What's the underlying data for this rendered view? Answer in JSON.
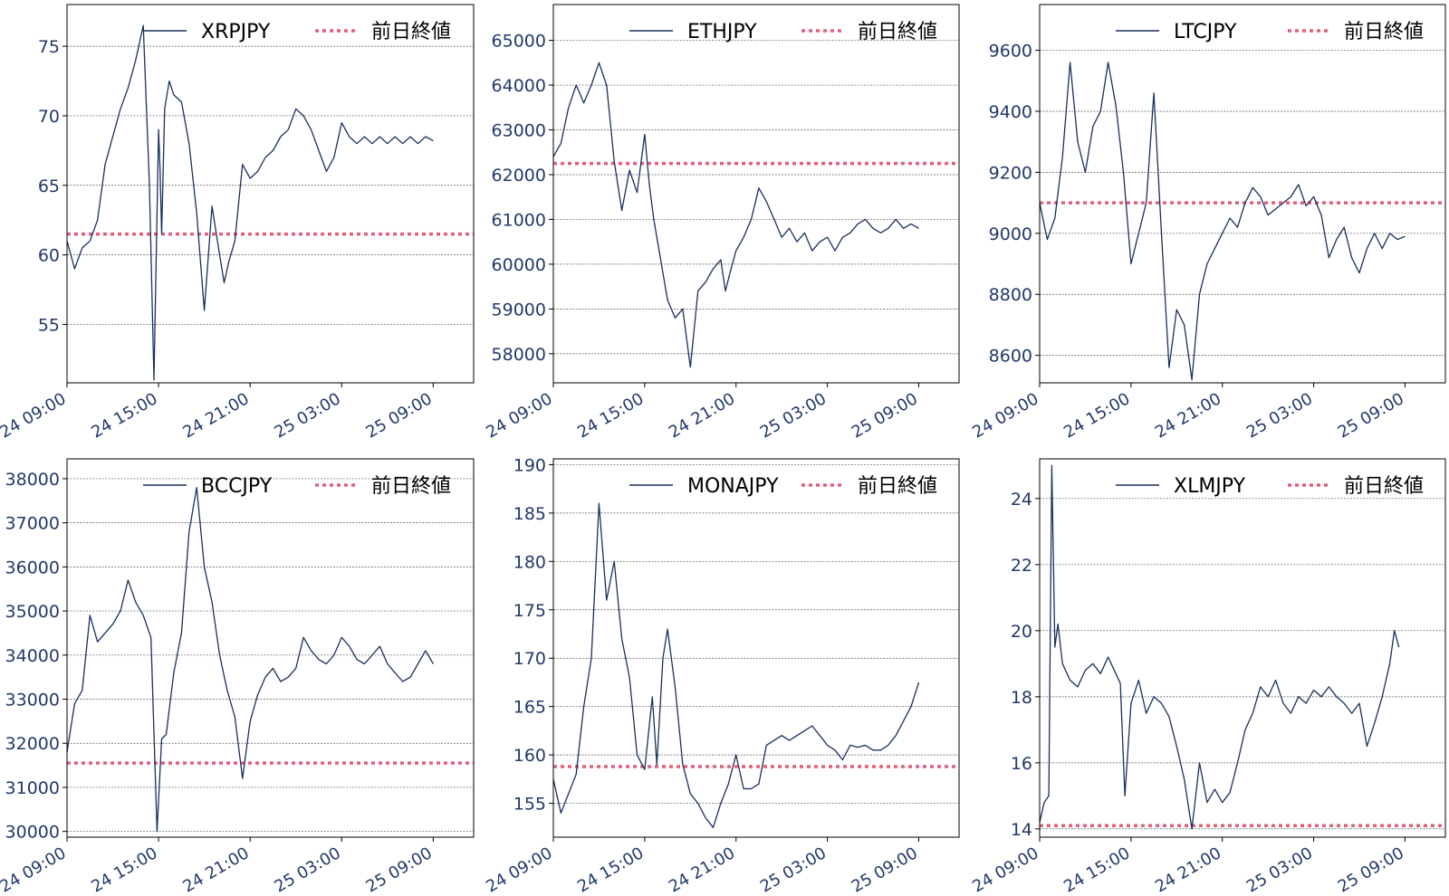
{
  "colors": {
    "series": "#1a2f5c",
    "prev_close": "#e0607e",
    "grid": "#555555",
    "frame": "#000000",
    "tick_text": "#23396a"
  },
  "legend": {
    "prev_close_label": "前日終値"
  },
  "xticks": [
    "24 09:00",
    "24 15:00",
    "24 21:00",
    "25 03:00",
    "25 09:00"
  ],
  "chart_data": [
    {
      "type": "line",
      "series_name": "XRPJPY",
      "y_ticks": [
        55,
        60,
        65,
        70,
        75
      ],
      "ylim": [
        50.8,
        78
      ],
      "prev_close": 61.5,
      "x_hours": [
        0,
        0.5,
        1.0,
        1.5,
        2.0,
        2.5,
        3.0,
        3.5,
        4.0,
        4.5,
        5.0,
        5.4,
        5.7,
        6.0,
        6.1,
        6.2,
        6.4,
        6.7,
        7.0,
        7.5,
        8.0,
        8.5,
        9.0,
        9.5,
        10.0,
        10.3,
        10.6,
        11.0,
        11.5,
        12.0,
        12.5,
        13.0,
        13.5,
        14.0,
        14.5,
        15.0,
        15.5,
        16.0,
        16.5,
        17.0,
        17.5,
        18.0,
        18.5,
        19.0,
        19.5,
        20.0,
        20.5,
        21.0,
        21.5,
        22.0,
        22.5,
        23.0,
        23.5,
        24.0
      ],
      "values": [
        61.0,
        59.0,
        60.5,
        61.0,
        62.5,
        66.5,
        68.5,
        70.5,
        72.0,
        74.0,
        76.5,
        65.0,
        51.0,
        69.0,
        66.0,
        61.5,
        70.5,
        72.5,
        71.5,
        71.0,
        68.0,
        63.0,
        56.0,
        63.5,
        60.0,
        58.0,
        59.5,
        61.0,
        66.5,
        65.5,
        66.0,
        67.0,
        67.5,
        68.5,
        69.0,
        70.5,
        70.0,
        69.0,
        67.5,
        66.0,
        67.0,
        69.5,
        68.5,
        68.0,
        68.5,
        68.0,
        68.5,
        68.0,
        68.5,
        68.0,
        68.5,
        68.0,
        68.5,
        68.2
      ]
    },
    {
      "type": "line",
      "series_name": "ETHJPY",
      "y_ticks": [
        58000,
        59000,
        60000,
        61000,
        62000,
        63000,
        64000,
        65000
      ],
      "ylim": [
        57350,
        65800
      ],
      "prev_close": 62250,
      "x_hours": [
        0,
        0.5,
        1.0,
        1.5,
        2.0,
        2.5,
        3.0,
        3.5,
        4.0,
        4.5,
        5.0,
        5.5,
        6.0,
        6.3,
        6.6,
        7.0,
        7.5,
        8.0,
        8.5,
        9.0,
        9.5,
        10.0,
        10.5,
        11.0,
        11.3,
        11.6,
        12.0,
        12.5,
        13.0,
        13.5,
        14.0,
        14.5,
        15.0,
        15.5,
        16.0,
        16.5,
        17.0,
        17.5,
        18.0,
        18.5,
        19.0,
        19.5,
        20.0,
        20.5,
        21.0,
        21.5,
        22.0,
        22.5,
        23.0,
        23.5,
        24.0
      ],
      "values": [
        62400,
        62700,
        63500,
        64000,
        63600,
        64000,
        64500,
        64000,
        62300,
        61200,
        62100,
        61600,
        62900,
        61800,
        61000,
        60200,
        59200,
        58800,
        59000,
        57700,
        59400,
        59600,
        59900,
        60100,
        59400,
        59800,
        60300,
        60600,
        61000,
        61700,
        61400,
        61000,
        60600,
        60800,
        60500,
        60700,
        60300,
        60500,
        60600,
        60300,
        60600,
        60700,
        60900,
        61000,
        60800,
        60700,
        60800,
        61000,
        60800,
        60900,
        60800
      ]
    },
    {
      "type": "line",
      "series_name": "LTCJPY",
      "y_ticks": [
        8600,
        8800,
        9000,
        9200,
        9400,
        9600
      ],
      "ylim": [
        8510,
        9750
      ],
      "prev_close": 9100,
      "x_hours": [
        0,
        0.5,
        1.0,
        1.5,
        2.0,
        2.5,
        3.0,
        3.5,
        4.0,
        4.5,
        5.0,
        5.5,
        6.0,
        6.5,
        7.0,
        7.5,
        8.0,
        8.5,
        9.0,
        9.5,
        10.0,
        10.5,
        11.0,
        11.5,
        12.0,
        12.5,
        13.0,
        13.5,
        14.0,
        14.5,
        15.0,
        15.5,
        16.0,
        16.5,
        17.0,
        17.5,
        18.0,
        18.5,
        19.0,
        19.5,
        20.0,
        20.5,
        21.0,
        21.5,
        22.0,
        22.5,
        23.0,
        23.5,
        24.0
      ],
      "values": [
        9100,
        8980,
        9050,
        9250,
        9560,
        9300,
        9200,
        9350,
        9400,
        9560,
        9420,
        9200,
        8900,
        9000,
        9100,
        9460,
        9000,
        8560,
        8750,
        8700,
        8520,
        8800,
        8900,
        8950,
        9000,
        9050,
        9020,
        9100,
        9150,
        9120,
        9060,
        9080,
        9100,
        9120,
        9160,
        9090,
        9120,
        9060,
        8920,
        8980,
        9020,
        8920,
        8870,
        8950,
        9000,
        8950,
        9000,
        8980,
        8990
      ]
    },
    {
      "type": "line",
      "series_name": "BCCJPY",
      "y_ticks": [
        30000,
        31000,
        32000,
        33000,
        34000,
        35000,
        36000,
        37000,
        38000
      ],
      "ylim": [
        29870,
        38450
      ],
      "prev_close": 31550,
      "x_hours": [
        0,
        0.5,
        1.0,
        1.5,
        2.0,
        2.5,
        3.0,
        3.5,
        4.0,
        4.5,
        5.0,
        5.5,
        5.9,
        6.2,
        6.5,
        7.0,
        7.5,
        8.0,
        8.5,
        9.0,
        9.5,
        10.0,
        10.5,
        11.0,
        11.5,
        12.0,
        12.5,
        13.0,
        13.5,
        14.0,
        14.5,
        15.0,
        15.5,
        16.0,
        16.5,
        17.0,
        17.5,
        18.0,
        18.5,
        19.0,
        19.5,
        20.0,
        20.5,
        21.0,
        21.5,
        22.0,
        22.5,
        23.0,
        23.5,
        24.0
      ],
      "values": [
        31800,
        32900,
        33200,
        34900,
        34300,
        34500,
        34700,
        35000,
        35700,
        35200,
        34900,
        34400,
        30000,
        32100,
        32200,
        33600,
        34500,
        36800,
        37800,
        36000,
        35200,
        34000,
        33200,
        32600,
        31200,
        32500,
        33100,
        33500,
        33700,
        33400,
        33500,
        33700,
        34400,
        34100,
        33900,
        33800,
        34000,
        34400,
        34200,
        33900,
        33800,
        34000,
        34200,
        33800,
        33600,
        33400,
        33500,
        33800,
        34100,
        33800
      ]
    },
    {
      "type": "line",
      "series_name": "MONAJPY",
      "y_ticks": [
        155,
        160,
        165,
        170,
        175,
        180,
        185,
        190
      ],
      "ylim": [
        151.5,
        190.6
      ],
      "prev_close": 158.8,
      "x_hours": [
        0,
        0.5,
        1.0,
        1.5,
        2.0,
        2.5,
        3.0,
        3.5,
        4.0,
        4.5,
        5.0,
        5.5,
        6.0,
        6.5,
        6.8,
        7.2,
        7.5,
        8.0,
        8.5,
        9.0,
        9.5,
        10.0,
        10.5,
        11.0,
        11.5,
        12.0,
        12.5,
        13.0,
        13.5,
        14.0,
        14.5,
        15.0,
        15.5,
        16.0,
        16.5,
        17.0,
        17.5,
        18.0,
        18.5,
        19.0,
        19.5,
        20.0,
        20.5,
        21.0,
        21.5,
        22.0,
        22.5,
        23.0,
        23.5,
        24.0
      ],
      "values": [
        157.5,
        154.0,
        156.0,
        158.0,
        165.0,
        170.0,
        186.0,
        176.0,
        180.0,
        172.0,
        168.0,
        160.0,
        158.5,
        166.0,
        159.0,
        170.0,
        173.0,
        167.0,
        159.0,
        156.0,
        155.0,
        153.5,
        152.5,
        155.0,
        157.0,
        160.0,
        156.5,
        156.5,
        157.0,
        161.0,
        161.5,
        162.0,
        161.5,
        162.0,
        162.5,
        163.0,
        162.0,
        161.0,
        160.5,
        159.5,
        161.0,
        160.8,
        161.0,
        160.5,
        160.5,
        161.0,
        162.0,
        163.5,
        165.0,
        167.5
      ]
    },
    {
      "type": "line",
      "series_name": "XLMJPY",
      "y_ticks": [
        14,
        16,
        18,
        20,
        22,
        24
      ],
      "ylim": [
        13.75,
        25.2
      ],
      "prev_close": 14.1,
      "x_hours": [
        0,
        0.3,
        0.6,
        0.8,
        1.0,
        1.2,
        1.5,
        2.0,
        2.5,
        3.0,
        3.5,
        4.0,
        4.5,
        5.0,
        5.3,
        5.6,
        6.0,
        6.5,
        7.0,
        7.5,
        8.0,
        8.5,
        9.0,
        9.5,
        10.0,
        10.5,
        11.0,
        11.5,
        12.0,
        12.5,
        13.0,
        13.5,
        14.0,
        14.5,
        15.0,
        15.5,
        16.0,
        16.5,
        17.0,
        17.5,
        18.0,
        18.5,
        19.0,
        19.5,
        20.0,
        20.5,
        21.0,
        21.5,
        22.0,
        22.5,
        23.0,
        23.3,
        23.6
      ],
      "values": [
        14.2,
        14.8,
        15.0,
        25.0,
        19.5,
        20.2,
        19.0,
        18.5,
        18.3,
        18.8,
        19.0,
        18.7,
        19.2,
        18.7,
        18.4,
        15.0,
        17.8,
        18.5,
        17.5,
        18.0,
        17.8,
        17.4,
        16.5,
        15.5,
        14.0,
        16.0,
        14.8,
        15.2,
        14.8,
        15.1,
        16.0,
        17.0,
        17.5,
        18.3,
        18.0,
        18.5,
        17.8,
        17.5,
        18.0,
        17.8,
        18.2,
        18.0,
        18.3,
        18.0,
        17.8,
        17.5,
        17.8,
        16.5,
        17.2,
        18.0,
        19.0,
        20.0,
        19.5
      ]
    }
  ]
}
